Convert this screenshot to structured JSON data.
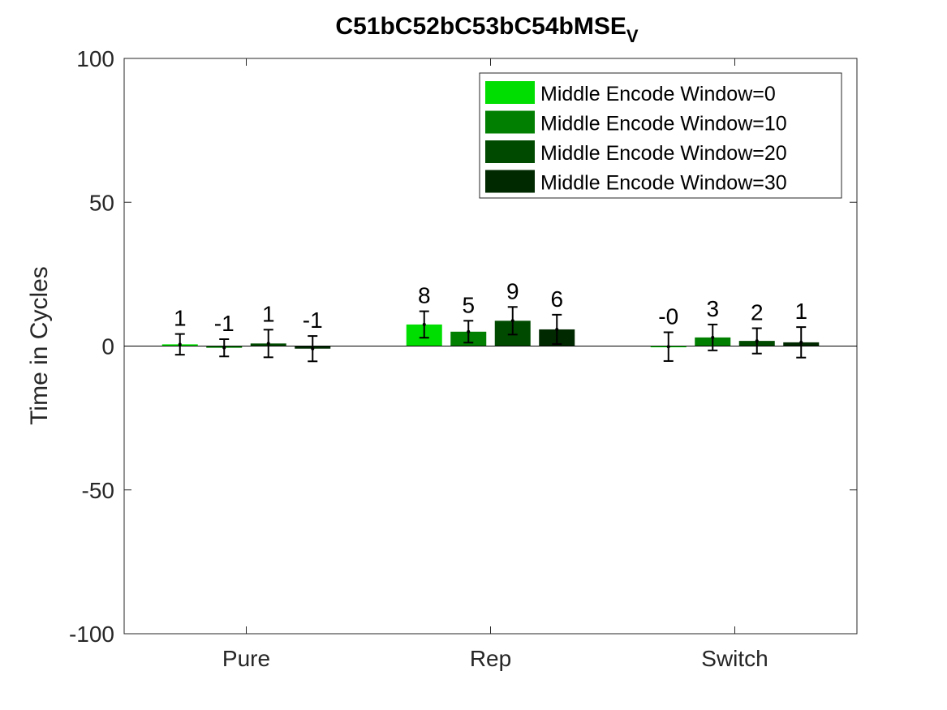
{
  "chart_data": {
    "type": "bar",
    "title": "C51bC52bC53bC54bMSE",
    "title_subscript": "V",
    "xlabel": "",
    "ylabel": "Time in Cycles",
    "ylim": [
      -100,
      100
    ],
    "yticks": [
      -100,
      -50,
      0,
      50,
      100
    ],
    "categories": [
      "Pure",
      "Rep",
      "Switch"
    ],
    "grid": false,
    "legend_position": "top-right",
    "series": [
      {
        "name": "Middle Encode Window=0",
        "color": "#00dd00",
        "values": [
          0.6,
          7.5,
          -0.2
        ],
        "errors": [
          3.6,
          4.6,
          5.0
        ],
        "labels": [
          "1",
          "8",
          "-0"
        ]
      },
      {
        "name": "Middle Encode Window=10",
        "color": "#007f00",
        "values": [
          -0.6,
          5.0,
          3.0
        ],
        "errors": [
          3.0,
          3.8,
          4.5
        ],
        "labels": [
          "-1",
          "5",
          "3"
        ]
      },
      {
        "name": "Middle Encode Window=20",
        "color": "#004a00",
        "values": [
          0.9,
          8.8,
          1.8
        ],
        "errors": [
          4.8,
          4.8,
          4.4
        ],
        "labels": [
          "1",
          "9",
          "2"
        ]
      },
      {
        "name": "Middle Encode Window=30",
        "color": "#002900",
        "values": [
          -0.9,
          5.8,
          1.3
        ],
        "errors": [
          4.4,
          5.1,
          5.3
        ],
        "labels": [
          "-1",
          "6",
          "1"
        ]
      }
    ]
  }
}
